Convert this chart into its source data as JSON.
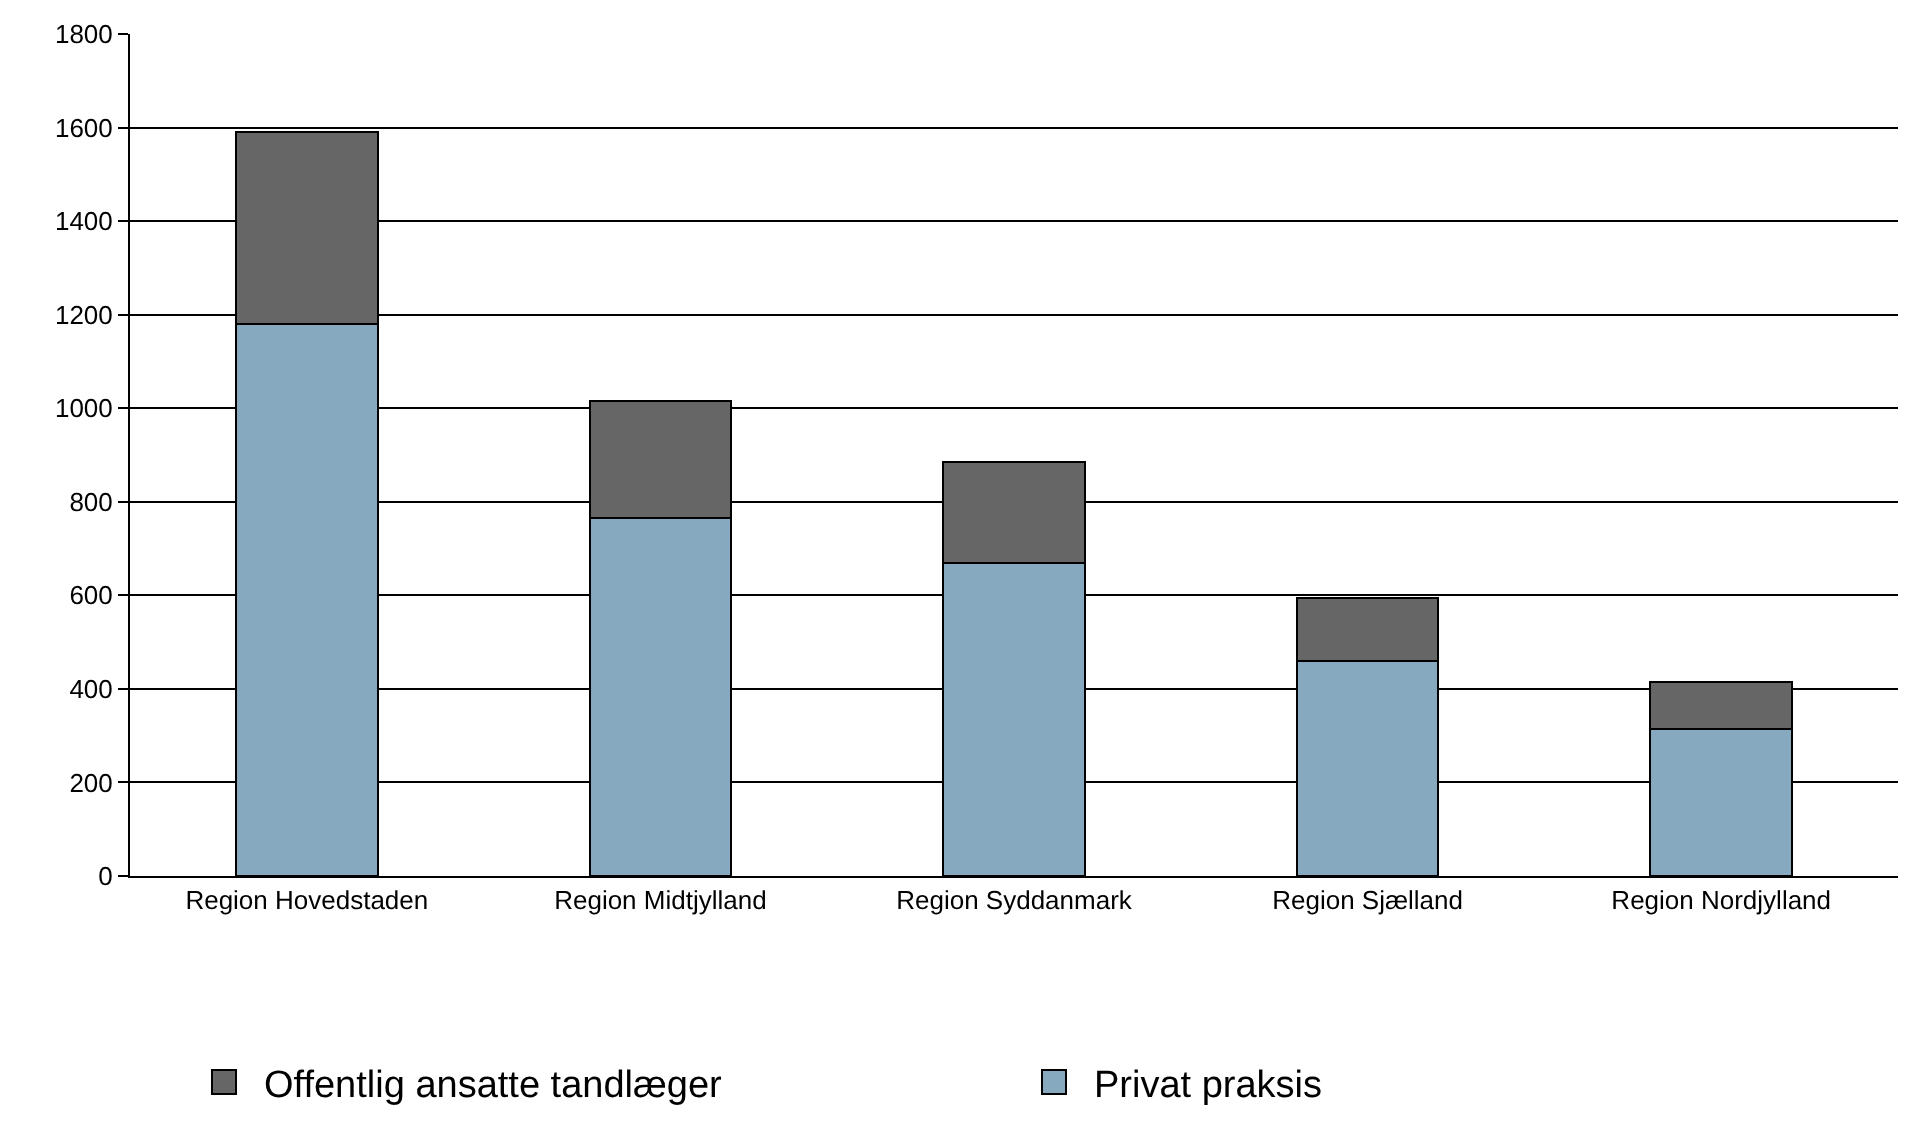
{
  "chart_data": {
    "type": "bar",
    "stacked": true,
    "categories": [
      "Region Hovedstaden",
      "Region Midtjylland",
      "Region Syddanmark",
      "Region Sjælland",
      "Region Nordjylland"
    ],
    "series": [
      {
        "name": "Privat praksis",
        "color": "#87a9bf",
        "values": [
          1180,
          765,
          670,
          460,
          315
        ]
      },
      {
        "name": "Offentlig ansatte tandlæger",
        "color": "#666666",
        "values": [
          410,
          250,
          215,
          135,
          100
        ]
      }
    ],
    "ylim": [
      0,
      1800
    ],
    "yticks": [
      0,
      200,
      400,
      600,
      800,
      1000,
      1200,
      1400,
      1600,
      1800
    ],
    "grid": "y",
    "legend": "bottom"
  }
}
